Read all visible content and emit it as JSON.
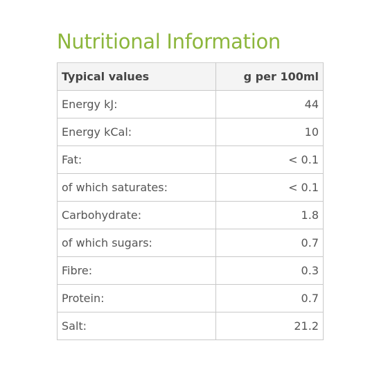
{
  "title": "Nutritional Information",
  "table": {
    "headers": {
      "label": "Typical values",
      "value": "g per 100ml"
    },
    "rows": [
      {
        "label": "Energy kJ:",
        "value": "44"
      },
      {
        "label": "Energy kCal:",
        "value": "10"
      },
      {
        "label": "Fat:",
        "value": "< 0.1"
      },
      {
        "label": "of which saturates:",
        "value": "< 0.1"
      },
      {
        "label": "Carbohydrate:",
        "value": "1.8"
      },
      {
        "label": "of which sugars:",
        "value": "0.7"
      },
      {
        "label": "Fibre:",
        "value": "0.3"
      },
      {
        "label": "Protein:",
        "value": "0.7"
      },
      {
        "label": "Salt:",
        "value": "21.2"
      }
    ]
  },
  "colors": {
    "title": "#8cb63c",
    "header_background": "#f4f4f4",
    "border": "#c8c8c8",
    "text": "#555555"
  }
}
